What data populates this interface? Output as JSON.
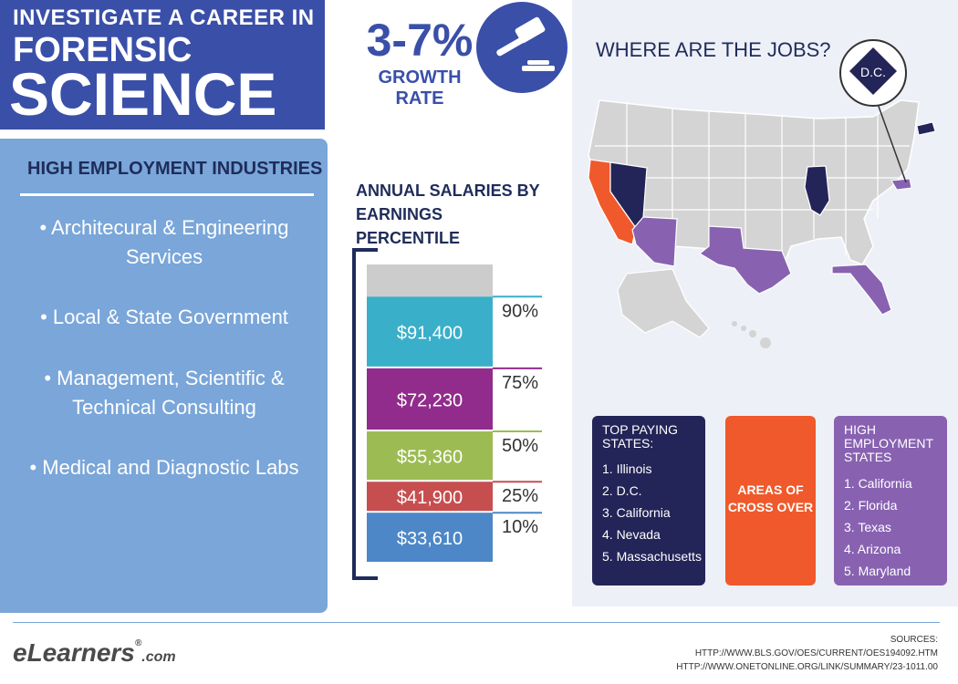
{
  "header": {
    "line1": "INVESTIGATE A CAREER IN",
    "line2": "FORENSIC",
    "line3": "SCIENCE"
  },
  "growth": {
    "value": "3-7%",
    "label": "GROWTH RATE",
    "icon": "gavel-icon"
  },
  "industries": {
    "heading": "HIGH EMPLOYMENT INDUSTRIES",
    "items": [
      "• Architecural & Engineering Services",
      "• Local & State Government",
      "• Management, Scientific & Technical Consulting",
      "• Medical and Diagnostic Labs"
    ]
  },
  "chart_data": {
    "type": "bar",
    "title": "ANNUAL SALARIES BY EARNINGS PERCENTILE",
    "orientation": "stacked-vertical",
    "categories": [
      "90%",
      "75%",
      "50%",
      "25%",
      "10%"
    ],
    "values": [
      91400,
      72230,
      55360,
      41900,
      33610
    ],
    "value_labels": [
      "$91,400",
      "$72,230",
      "$55,360",
      "$41,900",
      "$33,610"
    ],
    "colors": [
      "#3aafc9",
      "#922c8c",
      "#9cbc53",
      "#c74e4f",
      "#4d87c7"
    ],
    "ylim": [
      20000,
      100000
    ],
    "grid": false,
    "legend": "none"
  },
  "map": {
    "title": "WHERE ARE THE JOBS?",
    "dc_label": "D.C.",
    "colors": {
      "base": "#d4d4d4",
      "top_paying": "#232457",
      "cross_over": "#f0592b",
      "high_employment": "#8862b1",
      "background": "#eef0f7"
    }
  },
  "boxes": {
    "top_paying": {
      "title": "TOP PAYING STATES:",
      "items": [
        "1. Illinois",
        "2. D.C.",
        "3. California",
        "4. Nevada",
        "5. Massachusetts"
      ]
    },
    "cross_over": {
      "label": "AREAS OF CROSS OVER"
    },
    "high_employment": {
      "title": "HIGH EMPLOYMENT STATES",
      "items": [
        "1. California",
        "2. Florida",
        "3. Texas",
        "4. Arizona",
        "5. Maryland"
      ]
    }
  },
  "footer": {
    "logo_main": "eLearners",
    "logo_reg": "®",
    "logo_suffix": ".com",
    "sources_label": "SOURCES:",
    "sources": [
      "HTTP://WWW.BLS.GOV/OES/CURRENT/OES194092.HTM",
      "HTTP://WWW.ONETONLINE.ORG/LINK/SUMMARY/23-1011.00"
    ]
  }
}
